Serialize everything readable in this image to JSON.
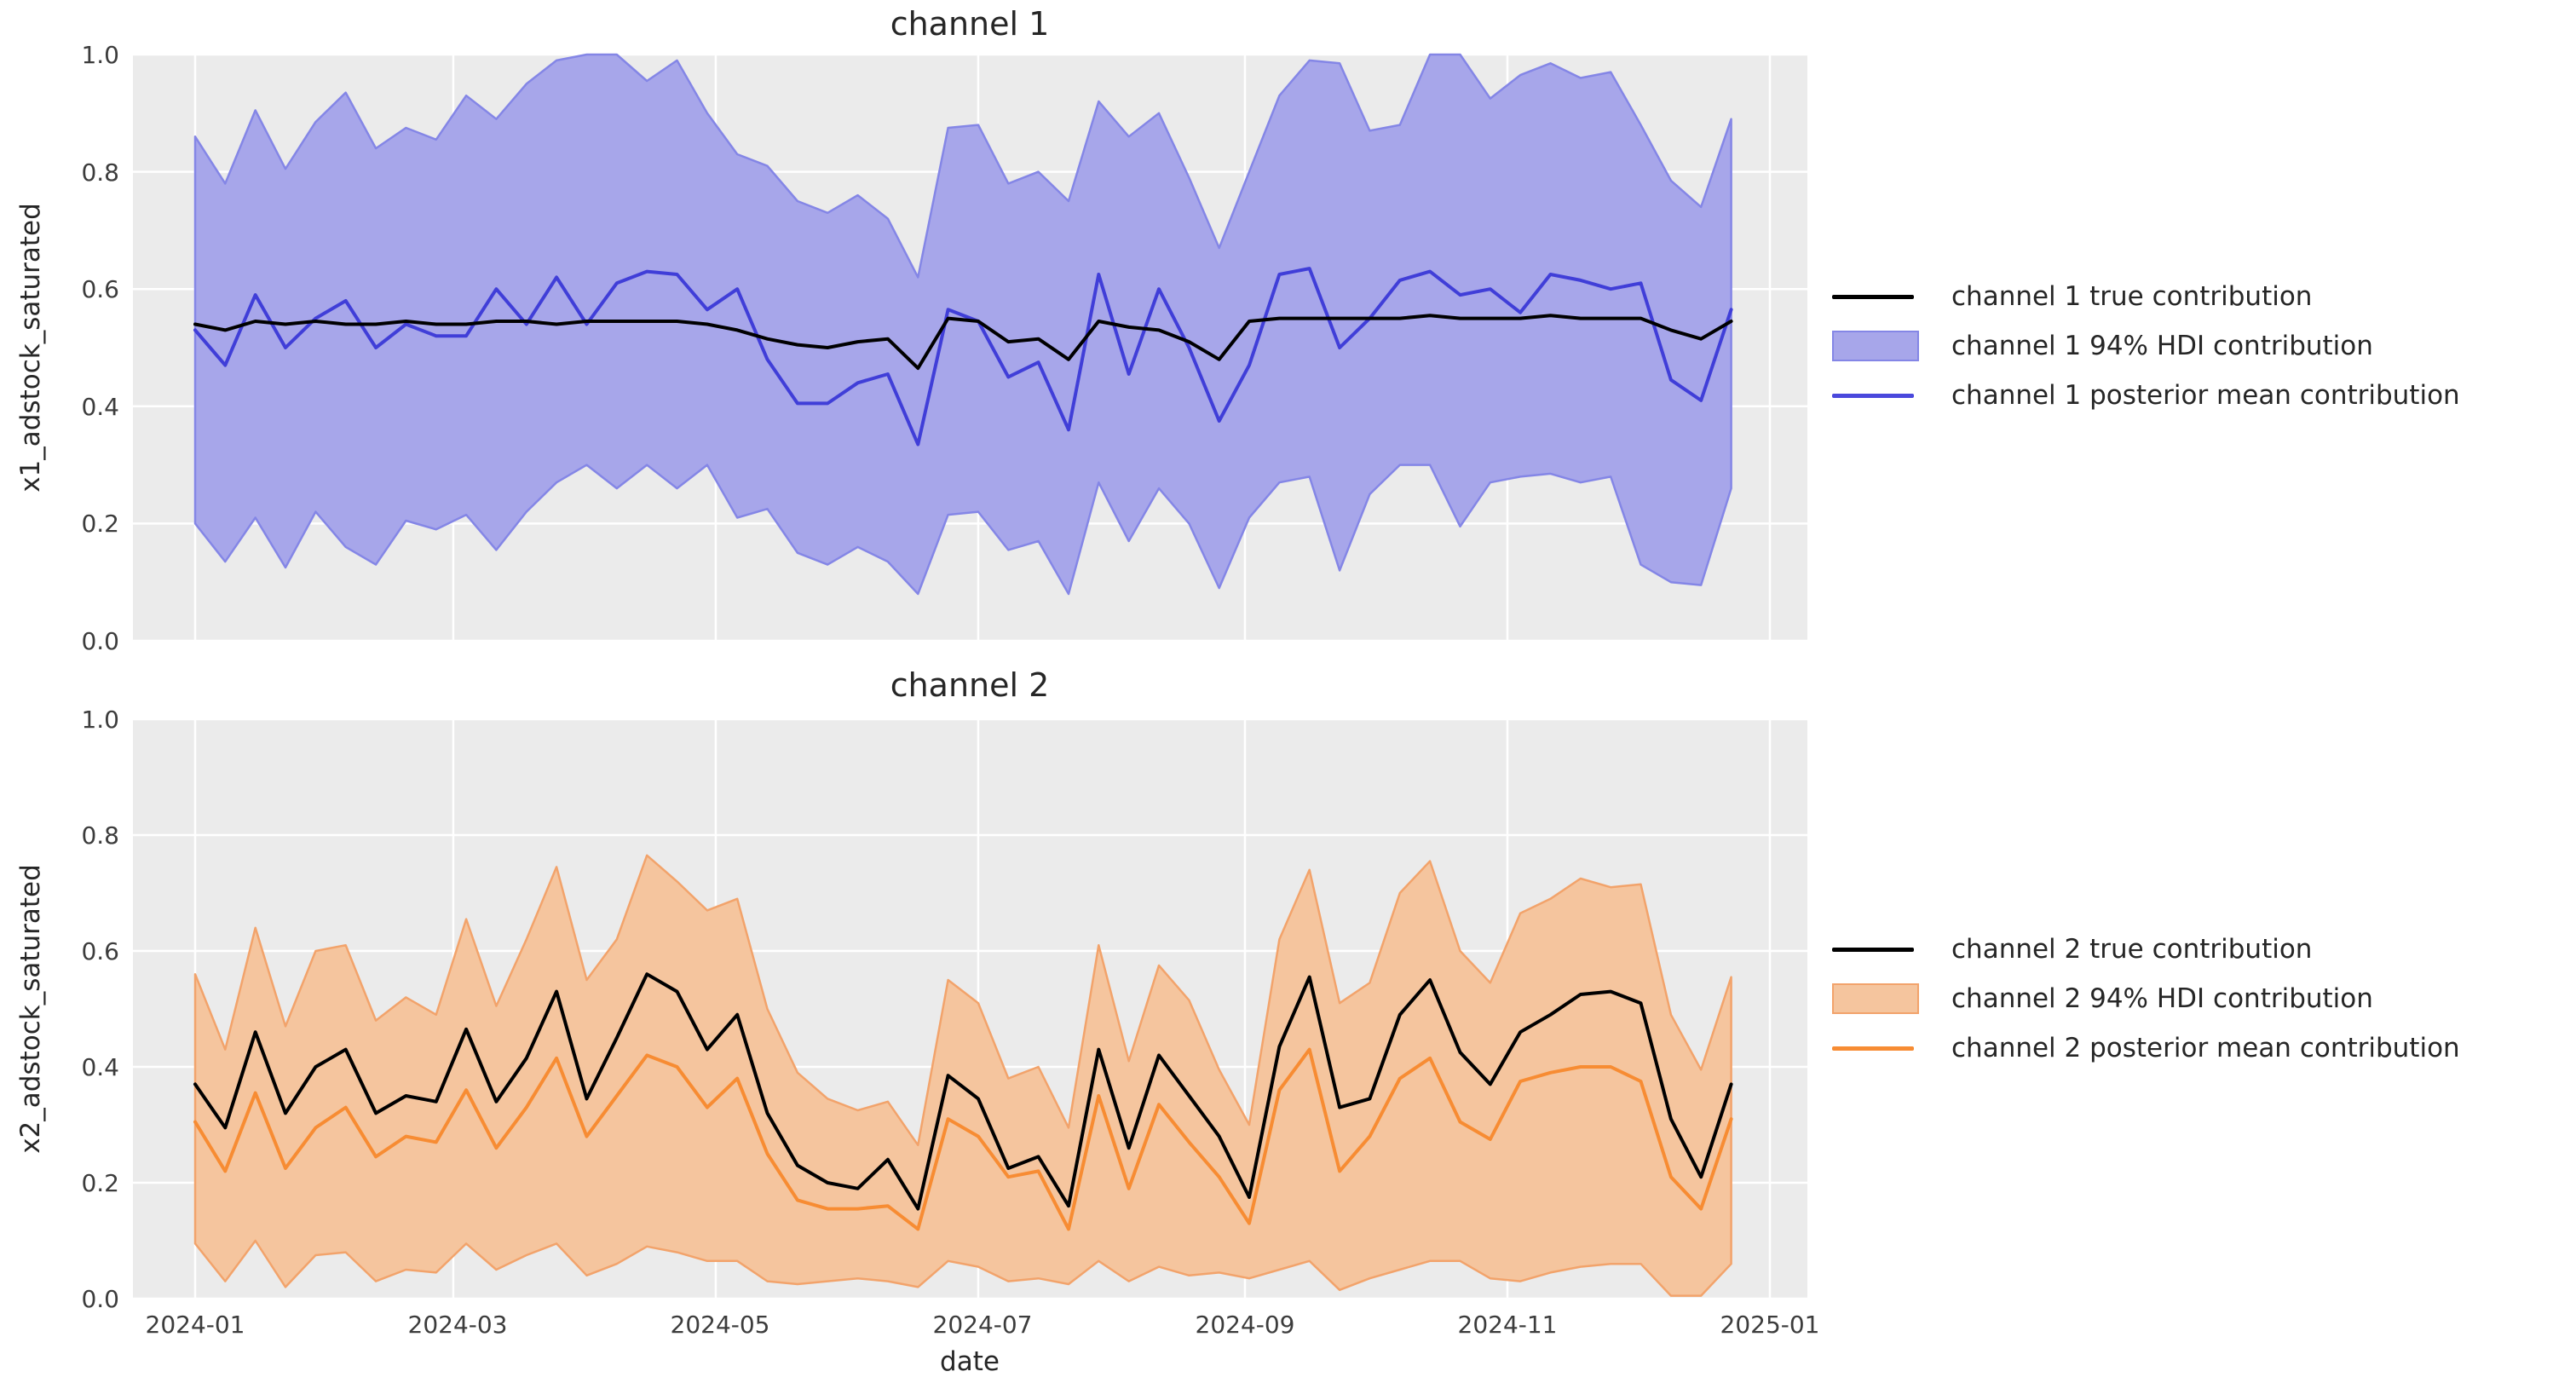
{
  "figure": {
    "background": "#ffffff",
    "panel_background": "#ebebeb",
    "grid_color": "#ffffff",
    "tick_color": "#3c3c3c",
    "text_color": "#262626",
    "xlabel": "date",
    "xtick_labels": [
      "2024-01",
      "2024-03",
      "2024-05",
      "2024-07",
      "2024-09",
      "2024-11",
      "2025-01"
    ],
    "xtick_dates": [
      "2024-01-01",
      "2024-03-01",
      "2024-05-01",
      "2024-07-01",
      "2024-09-01",
      "2024-11-01",
      "2025-01-01"
    ]
  },
  "chart_data": [
    {
      "type": "line",
      "title": "channel 1",
      "ylabel": "x1_adstock_saturated",
      "xlabel": "date",
      "ylim": [
        0.0,
        1.0
      ],
      "grid": true,
      "legend_position": "right",
      "ytick_labels": [
        "1.0",
        "0.8",
        "0.6",
        "0.4",
        "0.2",
        "0.0"
      ],
      "dates": [
        "2024-01-01",
        "2024-01-08",
        "2024-01-15",
        "2024-01-22",
        "2024-01-29",
        "2024-02-05",
        "2024-02-12",
        "2024-02-19",
        "2024-02-26",
        "2024-03-04",
        "2024-03-11",
        "2024-03-18",
        "2024-03-25",
        "2024-04-01",
        "2024-04-08",
        "2024-04-15",
        "2024-04-22",
        "2024-04-29",
        "2024-05-06",
        "2024-05-13",
        "2024-05-20",
        "2024-05-27",
        "2024-06-03",
        "2024-06-10",
        "2024-06-17",
        "2024-06-24",
        "2024-07-01",
        "2024-07-08",
        "2024-07-15",
        "2024-07-22",
        "2024-07-29",
        "2024-08-05",
        "2024-08-12",
        "2024-08-19",
        "2024-08-26",
        "2024-09-02",
        "2024-09-09",
        "2024-09-16",
        "2024-09-23",
        "2024-09-30",
        "2024-10-07",
        "2024-10-14",
        "2024-10-21",
        "2024-10-28",
        "2024-11-04",
        "2024-11-11",
        "2024-11-18",
        "2024-11-25",
        "2024-12-02",
        "2024-12-09",
        "2024-12-16",
        "2024-12-23"
      ],
      "series": {
        "true_contribution": [
          0.54,
          0.53,
          0.545,
          0.54,
          0.545,
          0.54,
          0.54,
          0.545,
          0.54,
          0.54,
          0.545,
          0.545,
          0.54,
          0.545,
          0.545,
          0.545,
          0.545,
          0.54,
          0.53,
          0.515,
          0.505,
          0.5,
          0.51,
          0.515,
          0.465,
          0.55,
          0.545,
          0.51,
          0.515,
          0.48,
          0.545,
          0.535,
          0.53,
          0.51,
          0.48,
          0.545,
          0.55,
          0.55,
          0.55,
          0.55,
          0.55,
          0.555,
          0.55,
          0.55,
          0.55,
          0.555,
          0.55,
          0.55,
          0.55,
          0.53,
          0.515,
          0.545
        ],
        "posterior_mean": [
          0.53,
          0.47,
          0.59,
          0.5,
          0.55,
          0.58,
          0.5,
          0.54,
          0.52,
          0.52,
          0.6,
          0.54,
          0.62,
          0.54,
          0.61,
          0.63,
          0.625,
          0.565,
          0.6,
          0.48,
          0.405,
          0.405,
          0.44,
          0.455,
          0.335,
          0.565,
          0.545,
          0.45,
          0.475,
          0.36,
          0.625,
          0.455,
          0.6,
          0.5,
          0.375,
          0.47,
          0.625,
          0.635,
          0.5,
          0.55,
          0.615,
          0.63,
          0.59,
          0.6,
          0.56,
          0.625,
          0.615,
          0.6,
          0.61,
          0.445,
          0.41,
          0.565
        ],
        "hdi_upper": [
          0.86,
          0.78,
          0.905,
          0.805,
          0.885,
          0.935,
          0.84,
          0.875,
          0.855,
          0.93,
          0.89,
          0.95,
          0.99,
          1.0,
          1.0,
          0.955,
          0.99,
          0.9,
          0.83,
          0.81,
          0.75,
          0.73,
          0.76,
          0.72,
          0.62,
          0.875,
          0.88,
          0.78,
          0.8,
          0.75,
          0.92,
          0.86,
          0.9,
          0.79,
          0.67,
          0.8,
          0.93,
          0.99,
          0.985,
          0.87,
          0.88,
          1.0,
          1.0,
          0.925,
          0.965,
          0.985,
          0.96,
          0.97,
          0.88,
          0.785,
          0.74,
          0.89
        ],
        "hdi_lower": [
          0.2,
          0.135,
          0.21,
          0.125,
          0.22,
          0.16,
          0.13,
          0.205,
          0.19,
          0.215,
          0.155,
          0.22,
          0.27,
          0.3,
          0.26,
          0.3,
          0.26,
          0.3,
          0.21,
          0.225,
          0.15,
          0.13,
          0.16,
          0.135,
          0.08,
          0.215,
          0.22,
          0.155,
          0.17,
          0.08,
          0.27,
          0.17,
          0.26,
          0.2,
          0.09,
          0.21,
          0.27,
          0.28,
          0.12,
          0.25,
          0.3,
          0.3,
          0.195,
          0.27,
          0.28,
          0.285,
          0.27,
          0.28,
          0.13,
          0.1,
          0.095,
          0.26
        ]
      },
      "colors": {
        "true_line": "#000000",
        "mean_line": "#403ed8",
        "band_fill": "#a7a6ea",
        "band_edge": "#8486e6"
      },
      "legend": [
        {
          "label": "channel 1 true contribution",
          "type": "line",
          "color": "#000000"
        },
        {
          "label": "channel 1 94% HDI contribution",
          "type": "patch",
          "fill": "#a7a6ea",
          "edge": "#8486e6"
        },
        {
          "label": "channel 1 posterior mean contribution",
          "type": "line",
          "color": "#4a48dc"
        }
      ]
    },
    {
      "type": "line",
      "title": "channel 2",
      "ylabel": "x2_adstock_saturated",
      "xlabel": "date",
      "ylim": [
        0.0,
        1.0
      ],
      "grid": true,
      "legend_position": "right",
      "ytick_labels": [
        "1.0",
        "0.8",
        "0.6",
        "0.4",
        "0.2",
        "0.0"
      ],
      "dates": [
        "2024-01-01",
        "2024-01-08",
        "2024-01-15",
        "2024-01-22",
        "2024-01-29",
        "2024-02-05",
        "2024-02-12",
        "2024-02-19",
        "2024-02-26",
        "2024-03-04",
        "2024-03-11",
        "2024-03-18",
        "2024-03-25",
        "2024-04-01",
        "2024-04-08",
        "2024-04-15",
        "2024-04-22",
        "2024-04-29",
        "2024-05-06",
        "2024-05-13",
        "2024-05-20",
        "2024-05-27",
        "2024-06-03",
        "2024-06-10",
        "2024-06-17",
        "2024-06-24",
        "2024-07-01",
        "2024-07-08",
        "2024-07-15",
        "2024-07-22",
        "2024-07-29",
        "2024-08-05",
        "2024-08-12",
        "2024-08-19",
        "2024-08-26",
        "2024-09-02",
        "2024-09-09",
        "2024-09-16",
        "2024-09-23",
        "2024-09-30",
        "2024-10-07",
        "2024-10-14",
        "2024-10-21",
        "2024-10-28",
        "2024-11-04",
        "2024-11-11",
        "2024-11-18",
        "2024-11-25",
        "2024-12-02",
        "2024-12-09",
        "2024-12-16",
        "2024-12-23"
      ],
      "series": {
        "true_contribution": [
          0.37,
          0.295,
          0.46,
          0.32,
          0.4,
          0.43,
          0.32,
          0.35,
          0.34,
          0.465,
          0.34,
          0.415,
          0.53,
          0.345,
          0.45,
          0.56,
          0.53,
          0.43,
          0.49,
          0.32,
          0.23,
          0.2,
          0.19,
          0.24,
          0.155,
          0.385,
          0.345,
          0.225,
          0.245,
          0.16,
          0.43,
          0.26,
          0.42,
          0.35,
          0.28,
          0.175,
          0.435,
          0.555,
          0.33,
          0.345,
          0.49,
          0.55,
          0.425,
          0.37,
          0.46,
          0.49,
          0.525,
          0.53,
          0.51,
          0.31,
          0.21,
          0.37
        ],
        "posterior_mean": [
          0.305,
          0.22,
          0.355,
          0.225,
          0.295,
          0.33,
          0.245,
          0.28,
          0.27,
          0.36,
          0.26,
          0.33,
          0.415,
          0.28,
          0.35,
          0.42,
          0.4,
          0.33,
          0.38,
          0.25,
          0.17,
          0.155,
          0.155,
          0.16,
          0.12,
          0.31,
          0.28,
          0.21,
          0.22,
          0.12,
          0.35,
          0.19,
          0.335,
          0.27,
          0.21,
          0.13,
          0.36,
          0.43,
          0.22,
          0.28,
          0.38,
          0.415,
          0.305,
          0.275,
          0.375,
          0.39,
          0.4,
          0.4,
          0.375,
          0.21,
          0.155,
          0.31
        ],
        "hdi_upper": [
          0.56,
          0.43,
          0.64,
          0.47,
          0.6,
          0.61,
          0.48,
          0.52,
          0.49,
          0.655,
          0.505,
          0.62,
          0.745,
          0.55,
          0.62,
          0.765,
          0.72,
          0.67,
          0.69,
          0.5,
          0.39,
          0.345,
          0.325,
          0.34,
          0.265,
          0.55,
          0.51,
          0.38,
          0.4,
          0.295,
          0.61,
          0.41,
          0.575,
          0.515,
          0.395,
          0.3,
          0.62,
          0.74,
          0.51,
          0.545,
          0.7,
          0.755,
          0.6,
          0.545,
          0.665,
          0.69,
          0.725,
          0.71,
          0.715,
          0.49,
          0.395,
          0.555
        ],
        "hdi_lower": [
          0.095,
          0.03,
          0.1,
          0.02,
          0.075,
          0.08,
          0.03,
          0.05,
          0.045,
          0.095,
          0.05,
          0.075,
          0.095,
          0.04,
          0.06,
          0.09,
          0.08,
          0.065,
          0.065,
          0.03,
          0.025,
          0.03,
          0.035,
          0.03,
          0.02,
          0.065,
          0.055,
          0.03,
          0.035,
          0.025,
          0.065,
          0.03,
          0.055,
          0.04,
          0.045,
          0.035,
          0.05,
          0.065,
          0.015,
          0.035,
          0.05,
          0.065,
          0.065,
          0.035,
          0.03,
          0.045,
          0.055,
          0.06,
          0.06,
          0.005,
          0.005,
          0.06
        ]
      },
      "colors": {
        "true_line": "#000000",
        "mean_line": "#f78c33",
        "band_fill": "#f5c59e",
        "band_edge": "#f2a36b"
      },
      "legend": [
        {
          "label": "channel 2 true contribution",
          "type": "line",
          "color": "#000000"
        },
        {
          "label": "channel 2 94% HDI contribution",
          "type": "patch",
          "fill": "#f5c59e",
          "edge": "#f2a36b"
        },
        {
          "label": "channel 2 posterior mean contribution",
          "type": "line",
          "color": "#f78c33"
        }
      ]
    }
  ]
}
